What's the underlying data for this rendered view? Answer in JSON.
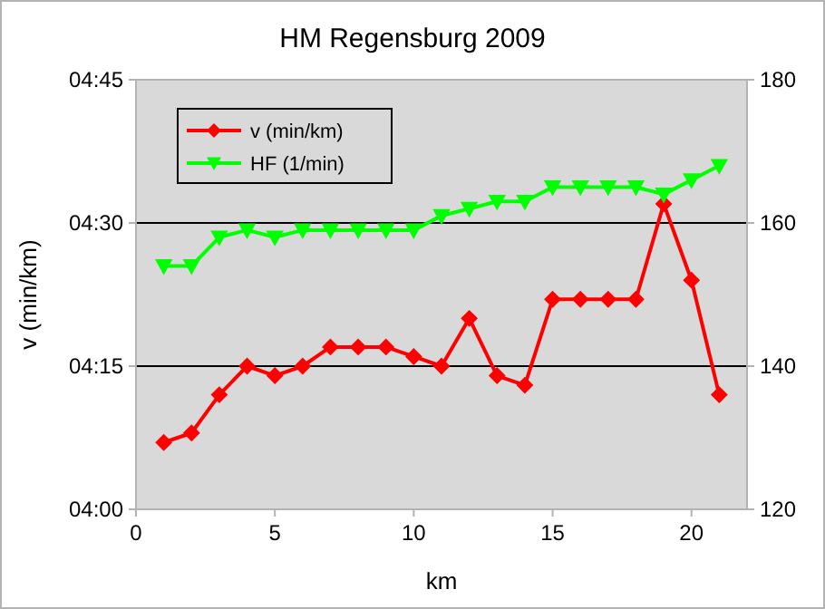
{
  "chart_data": {
    "type": "line",
    "title": "HM Regensburg 2009",
    "xlabel": "km",
    "ylabel": "v (min/km)",
    "x": [
      1,
      2,
      3,
      4,
      5,
      6,
      7,
      8,
      9,
      10,
      11,
      12,
      13,
      14,
      15,
      16,
      17,
      18,
      19,
      20,
      21
    ],
    "xlim": [
      0,
      22
    ],
    "xticks": [
      0,
      5,
      10,
      15,
      20
    ],
    "ylim": [
      240,
      285
    ],
    "yticks": [
      {
        "value": 240,
        "label": "04:00"
      },
      {
        "value": 255,
        "label": "04:15"
      },
      {
        "value": 270,
        "label": "04:30"
      },
      {
        "value": 285,
        "label": "04:45"
      }
    ],
    "y2lim": [
      120,
      180
    ],
    "y2ticks": [
      120,
      140,
      160,
      180
    ],
    "grid": "y",
    "legend": "top left",
    "series": [
      {
        "name": "v (min/km)",
        "color": "#ff0000",
        "marker": "diamond",
        "values": [
          247,
          248,
          252,
          255,
          254,
          255,
          257,
          257,
          257,
          256,
          255,
          260,
          254,
          253,
          262,
          262,
          262,
          262,
          272,
          264,
          252
        ]
      },
      {
        "name": "HF (1/min)",
        "color": "#00ff00",
        "marker": "triangle",
        "axis": "y2",
        "values": [
          154,
          154,
          158,
          159,
          158,
          159,
          159,
          159,
          159,
          159,
          161,
          162,
          163,
          163,
          165,
          165,
          165,
          165,
          164,
          166,
          168
        ]
      }
    ]
  }
}
